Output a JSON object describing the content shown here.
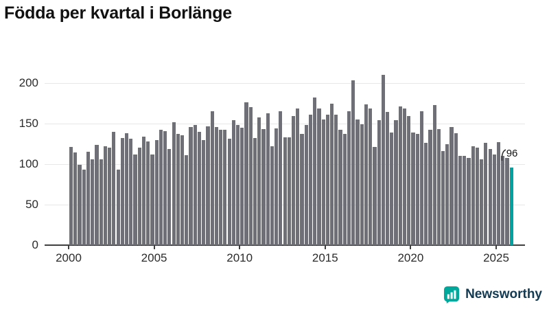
{
  "title": "Födda per kvartal i Borlänge",
  "chart_data": {
    "type": "bar",
    "title": "Födda per kvartal i Borlänge",
    "x_start": "2000 Q1",
    "x_end": "2025 Q4",
    "x_tick_labels": [
      "2000",
      "2005",
      "2010",
      "2015",
      "2020",
      "2025"
    ],
    "x_tick_years": [
      2000,
      2005,
      2010,
      2015,
      2020,
      2025
    ],
    "y_ticks": [
      0,
      50,
      100,
      150,
      200
    ],
    "ylim": [
      0,
      215
    ],
    "grid": "horizontal",
    "legend": "none",
    "values": [
      121,
      114,
      99,
      93,
      115,
      106,
      124,
      106,
      122,
      120,
      140,
      93,
      132,
      138,
      131,
      112,
      120,
      134,
      128,
      112,
      130,
      142,
      141,
      119,
      152,
      137,
      136,
      111,
      146,
      148,
      140,
      130,
      147,
      165,
      146,
      142,
      142,
      131,
      154,
      148,
      145,
      176,
      170,
      132,
      158,
      143,
      163,
      122,
      144,
      165,
      133,
      133,
      159,
      169,
      137,
      148,
      161,
      182,
      169,
      155,
      161,
      175,
      161,
      142,
      137,
      165,
      203,
      155,
      149,
      174,
      169,
      121,
      154,
      210,
      164,
      139,
      154,
      171,
      169,
      159,
      139,
      137,
      165,
      126,
      142,
      173,
      143,
      116,
      125,
      146,
      138,
      110,
      110,
      108,
      122,
      120,
      106,
      126,
      119,
      112,
      127,
      110,
      108,
      96
    ],
    "highlight_last": {
      "label": "96",
      "value": 96
    }
  },
  "colors": {
    "bar": "#6f6f78",
    "highlight": "#00a1a1",
    "axis": "#3f3f3f",
    "gridline": "#e7e7e7",
    "brand_text": "#123a52",
    "logo_icon": "#00a79b"
  },
  "footer": {
    "brand": "Newsworthy"
  }
}
